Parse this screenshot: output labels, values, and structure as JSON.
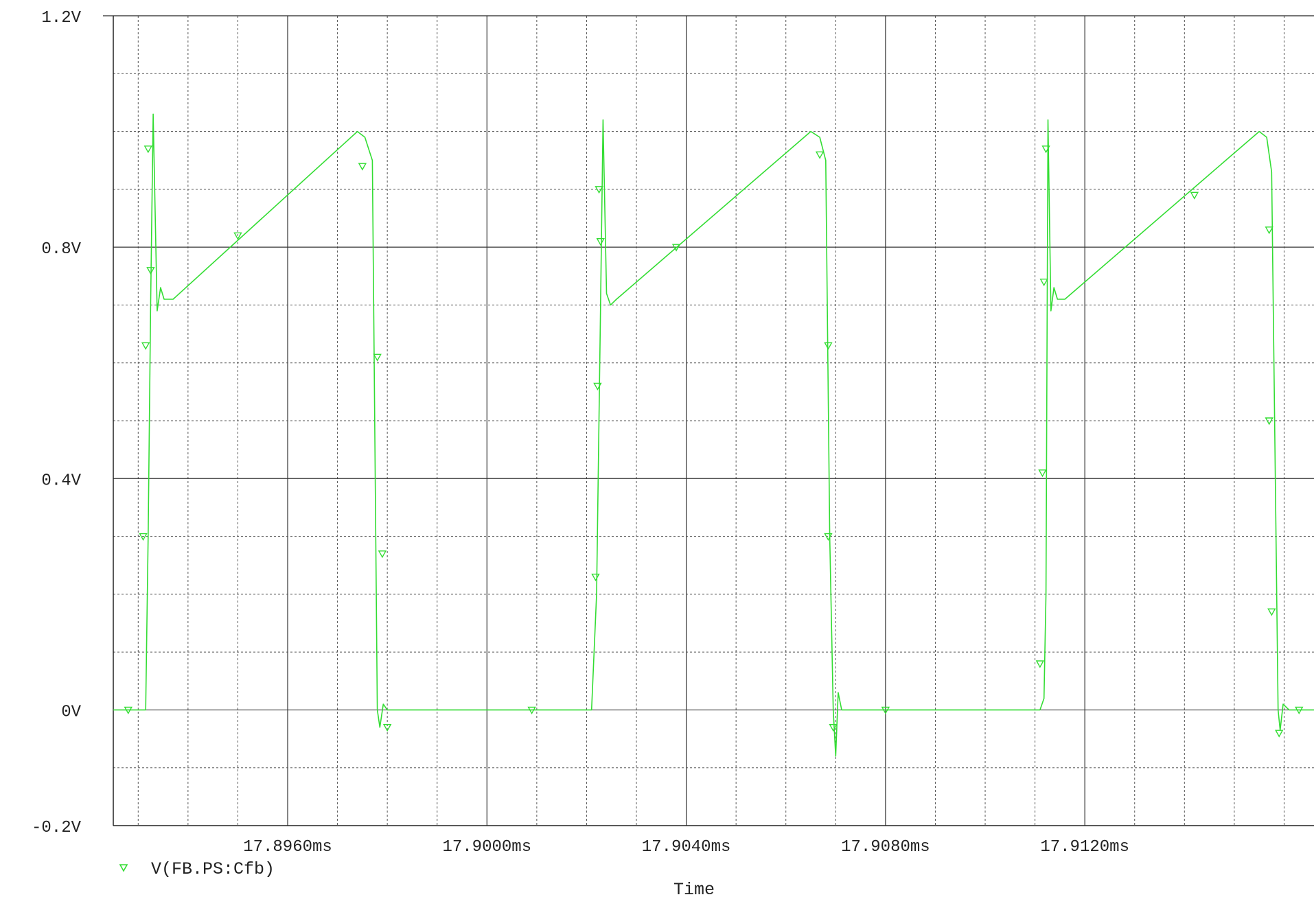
{
  "chart_data": {
    "type": "line",
    "title": "",
    "xlabel": "Time",
    "ylabel": "",
    "xlim": [
      17.8925,
      17.9166
    ],
    "ylim": [
      -0.2,
      1.2
    ],
    "x_unit": "ms",
    "x_ticks": [
      {
        "value": 17.896,
        "label": "17.8960ms"
      },
      {
        "value": 17.9,
        "label": "17.9000ms"
      },
      {
        "value": 17.904,
        "label": "17.9040ms"
      },
      {
        "value": 17.908,
        "label": "17.9080ms"
      },
      {
        "value": 17.912,
        "label": "17.9120ms"
      }
    ],
    "x_minor_step": 0.001,
    "y_ticks": [
      {
        "value": 1.2,
        "label": "1.2V"
      },
      {
        "value": 0.8,
        "label": "0.8V"
      },
      {
        "value": 0.4,
        "label": "0.4V"
      },
      {
        "value": 0.0,
        "label": "0V"
      },
      {
        "value": -0.2,
        "label": "-0.2V"
      }
    ],
    "y_minor_step": 0.1,
    "grid": true,
    "legend_position": "bottom-left",
    "series": [
      {
        "name": "V(FB.PS:Cfb)",
        "color": "#33dd33",
        "marker": "triangle-down",
        "points": [
          [
            17.8925,
            0.0
          ],
          [
            17.893,
            0.0
          ],
          [
            17.89315,
            0.0
          ],
          [
            17.8932,
            0.3
          ],
          [
            17.89325,
            0.7
          ],
          [
            17.8933,
            1.03
          ],
          [
            17.89338,
            0.69
          ],
          [
            17.89345,
            0.73
          ],
          [
            17.89352,
            0.71
          ],
          [
            17.8937,
            0.71
          ],
          [
            17.8974,
            1.0
          ],
          [
            17.89755,
            0.99
          ],
          [
            17.8977,
            0.95
          ],
          [
            17.8978,
            0.0
          ],
          [
            17.89785,
            -0.03
          ],
          [
            17.89792,
            0.01
          ],
          [
            17.898,
            0.0
          ],
          [
            17.9021,
            0.0
          ],
          [
            17.9022,
            0.2
          ],
          [
            17.90228,
            0.7
          ],
          [
            17.90233,
            1.02
          ],
          [
            17.9024,
            0.72
          ],
          [
            17.90248,
            0.7
          ],
          [
            17.9026,
            0.71
          ],
          [
            17.9065,
            1.0
          ],
          [
            17.90668,
            0.99
          ],
          [
            17.9068,
            0.95
          ],
          [
            17.90688,
            0.3
          ],
          [
            17.90695,
            0.0
          ],
          [
            17.907,
            -0.08
          ],
          [
            17.90705,
            0.03
          ],
          [
            17.90712,
            0.0
          ],
          [
            17.9111,
            0.0
          ],
          [
            17.91118,
            0.02
          ],
          [
            17.91122,
            0.2
          ],
          [
            17.91126,
            1.02
          ],
          [
            17.91132,
            0.69
          ],
          [
            17.91138,
            0.73
          ],
          [
            17.91145,
            0.71
          ],
          [
            17.9116,
            0.71
          ],
          [
            17.9155,
            1.0
          ],
          [
            17.91565,
            0.99
          ],
          [
            17.91575,
            0.93
          ],
          [
            17.91588,
            0.0
          ],
          [
            17.91592,
            -0.035
          ],
          [
            17.91598,
            0.01
          ],
          [
            17.9161,
            0.0
          ],
          [
            17.9166,
            0.0
          ]
        ],
        "markers": [
          [
            17.8928,
            0.0
          ],
          [
            17.8931,
            0.3
          ],
          [
            17.89315,
            0.63
          ],
          [
            17.8932,
            0.97
          ],
          [
            17.89325,
            0.76
          ],
          [
            17.895,
            0.82
          ],
          [
            17.8975,
            0.94
          ],
          [
            17.8978,
            0.61
          ],
          [
            17.8979,
            0.27
          ],
          [
            17.898,
            -0.03
          ],
          [
            17.9009,
            0.0
          ],
          [
            17.90218,
            0.23
          ],
          [
            17.90222,
            0.56
          ],
          [
            17.90225,
            0.9
          ],
          [
            17.90228,
            0.81
          ],
          [
            17.9038,
            0.8
          ],
          [
            17.90668,
            0.96
          ],
          [
            17.90685,
            0.63
          ],
          [
            17.90685,
            0.3
          ],
          [
            17.90695,
            -0.03
          ],
          [
            17.908,
            0.0
          ],
          [
            17.9111,
            0.08
          ],
          [
            17.91115,
            0.41
          ],
          [
            17.91118,
            0.74
          ],
          [
            17.91122,
            0.97
          ],
          [
            17.9142,
            0.89
          ],
          [
            17.9157,
            0.83
          ],
          [
            17.9157,
            0.5
          ],
          [
            17.91575,
            0.17
          ],
          [
            17.9159,
            -0.04
          ],
          [
            17.9163,
            0.0
          ]
        ]
      }
    ]
  }
}
